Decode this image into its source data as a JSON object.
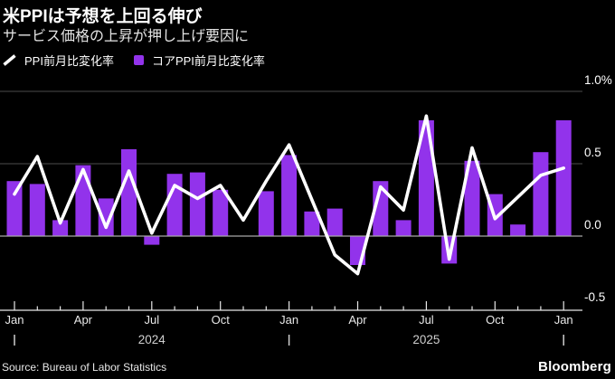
{
  "header": {
    "title": "米PPIは予想を上回る伸び",
    "subtitle": "サービス価格の上昇が押し上げ要因に"
  },
  "legend": [
    {
      "label": "PPI前月比変化率",
      "marker": "line"
    },
    {
      "label": "コアPPI前月比変化率",
      "marker": "square"
    }
  ],
  "footer": {
    "source": "Source: Bureau of Labor Statistics",
    "brand": "Bloomberg"
  },
  "colors": {
    "background": "#000000",
    "bar": "#9233EB",
    "line": "#FFFFFF",
    "grid": "#4d4d4d",
    "zero_line": "#a8a8a8",
    "axis": "#e8e8e8",
    "tick_label": "#e8e8e8",
    "year_label": "#cfcfcf"
  },
  "chart_data": {
    "type": "bar",
    "x": [
      "Jan 2024",
      "Feb 2024",
      "Mar 2024",
      "Apr 2024",
      "May 2024",
      "Jun 2024",
      "Jul 2024",
      "Aug 2024",
      "Sep 2024",
      "Oct 2024",
      "Nov 2024",
      "Dec 2024",
      "Jan 2025",
      "Feb 2025",
      "Mar 2025",
      "Apr 2025",
      "May 2025",
      "Jun 2025",
      "Jul 2025",
      "Aug 2025",
      "Sep 2025",
      "Oct 2025",
      "Nov 2025",
      "Dec 2025",
      "Jan 2026"
    ],
    "series": [
      {
        "name": "PPI前月比変化率",
        "type": "line",
        "values": [
          0.29,
          0.55,
          0.09,
          0.46,
          0.06,
          0.45,
          0.02,
          0.35,
          0.26,
          0.35,
          0.11,
          0.38,
          0.63,
          0.25,
          -0.13,
          -0.26,
          0.34,
          0.18,
          0.83,
          -0.16,
          0.61,
          0.12,
          0.27,
          0.42,
          0.47
        ]
      },
      {
        "name": "コアPPI前月比変化率",
        "type": "bar",
        "values": [
          0.38,
          0.36,
          0.11,
          0.49,
          0.26,
          0.6,
          -0.06,
          0.43,
          0.44,
          0.32,
          0.0,
          0.31,
          0.56,
          0.17,
          0.19,
          -0.2,
          0.38,
          0.11,
          0.8,
          -0.19,
          0.52,
          0.29,
          0.08,
          0.58,
          0.8
        ]
      }
    ],
    "ylim": [
      -0.5,
      1.0
    ],
    "y_ticks": [
      {
        "label": "1.0%",
        "value": 1.0
      },
      {
        "label": "0.5",
        "value": 0.5
      },
      {
        "label": "0.0",
        "value": 0.0
      },
      {
        "label": "-0.5",
        "value": -0.5
      }
    ],
    "x_ticks": [
      {
        "i": 0,
        "label": "Jan"
      },
      {
        "i": 3,
        "label": "Apr"
      },
      {
        "i": 6,
        "label": "Jul"
      },
      {
        "i": 9,
        "label": "Oct"
      },
      {
        "i": 12,
        "label": "Jan"
      },
      {
        "i": 15,
        "label": "Apr"
      },
      {
        "i": 18,
        "label": "Jul"
      },
      {
        "i": 21,
        "label": "Oct"
      },
      {
        "i": 24,
        "label": "Jan"
      }
    ],
    "year_labels": [
      {
        "i": 6,
        "label": "2024"
      },
      {
        "i": 18,
        "label": "2025"
      }
    ],
    "year_boundary_marks": [
      0,
      12,
      24
    ],
    "grid": true,
    "legend_position": "top"
  }
}
